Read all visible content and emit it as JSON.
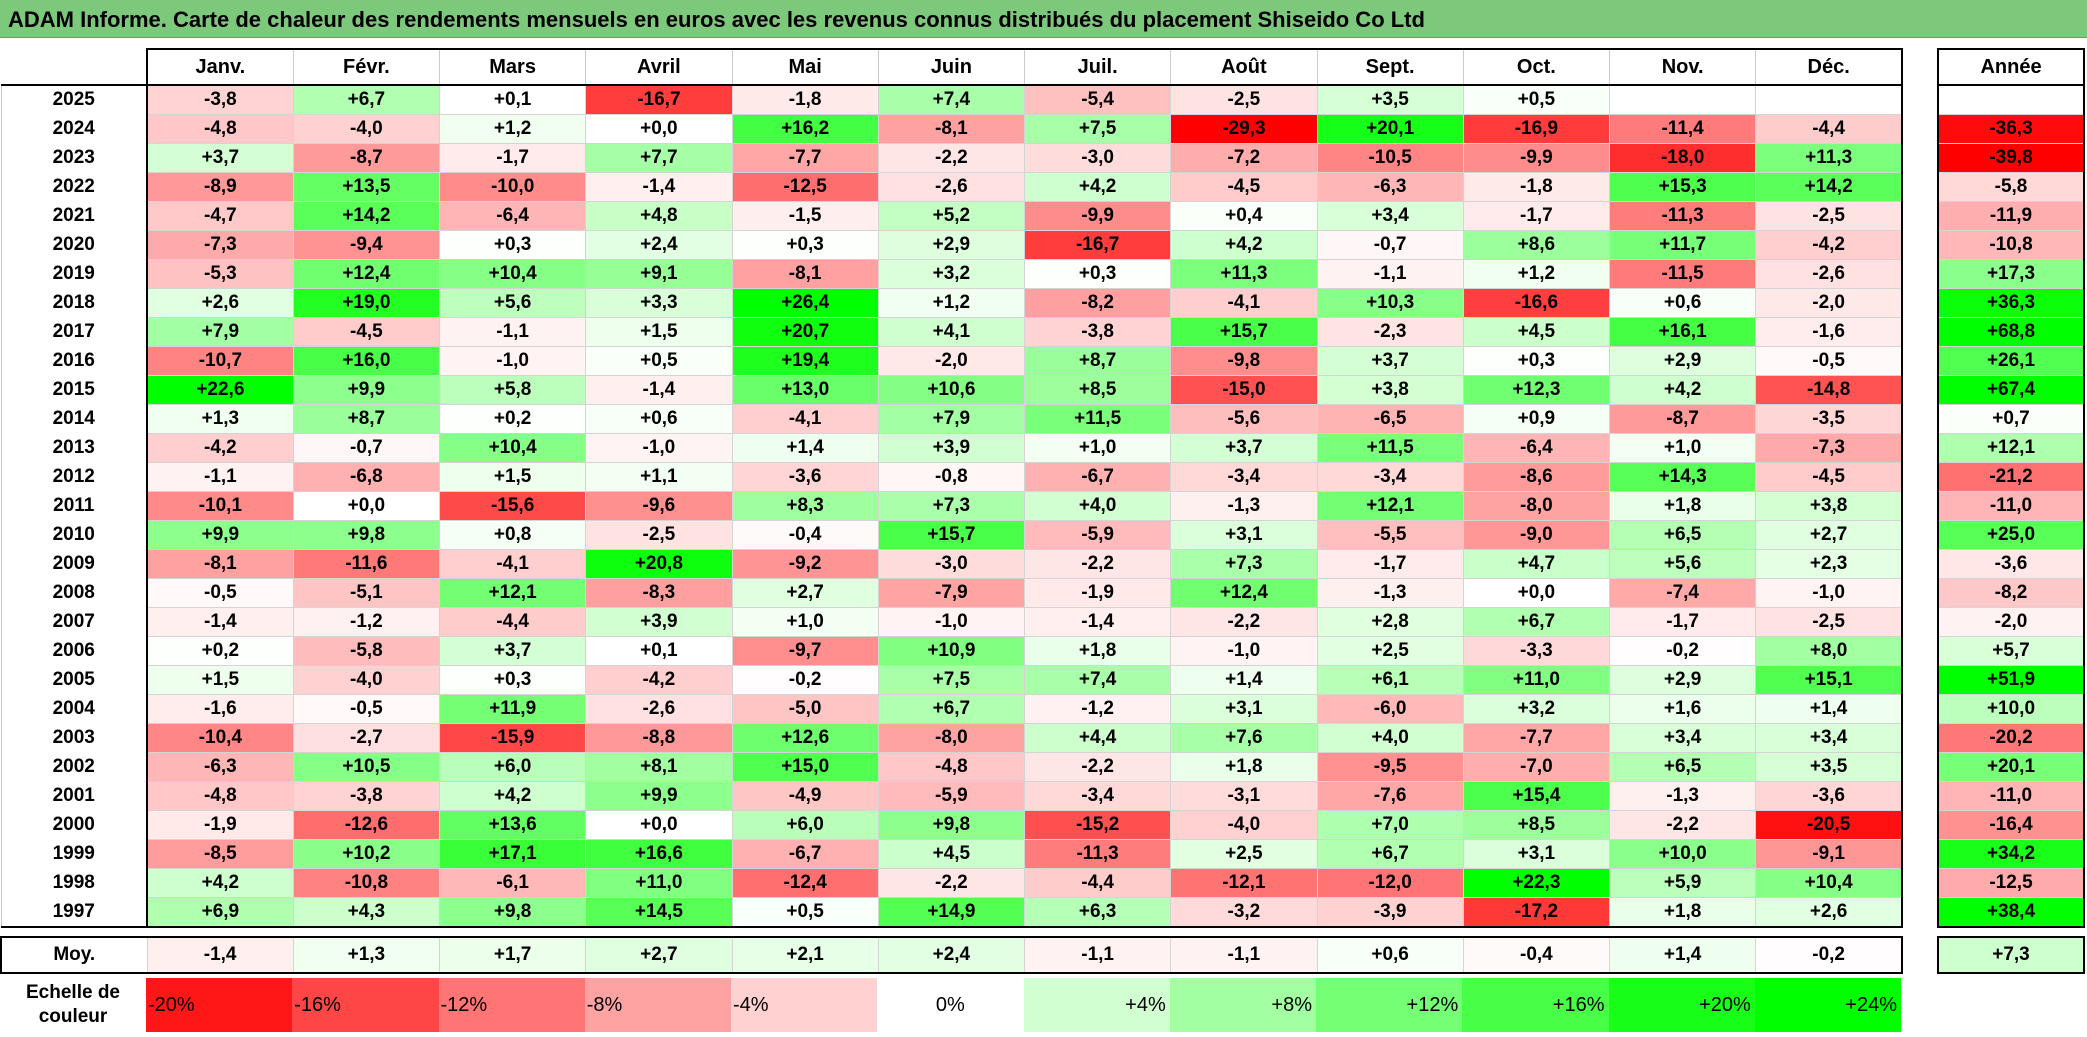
{
  "title": "ADAM Informe. Carte de chaleur des rendements mensuels en euros avec les revenus connus distribués du placement Shiseido Co Ltd",
  "chart_data": {
    "type": "heatmap",
    "title": "ADAM Informe. Carte de chaleur des rendements mensuels en euros avec les revenus connus distribués du placement Shiseido Co Ltd",
    "columns": [
      "Janv.",
      "Févr.",
      "Mars",
      "Avril",
      "Mai",
      "Juin",
      "Juil.",
      "Août",
      "Sept.",
      "Oct.",
      "Nov.",
      "Déc."
    ],
    "annual_header": "Année",
    "rows": [
      {
        "year": "2025",
        "values": [
          "-3,8",
          "+6,7",
          "+0,1",
          "-16,7",
          "-1,8",
          "+7,4",
          "-5,4",
          "-2,5",
          "+3,5",
          "+0,5",
          "",
          ""
        ],
        "annual": ""
      },
      {
        "year": "2024",
        "values": [
          "-4,8",
          "-4,0",
          "+1,2",
          "+0,0",
          "+16,2",
          "-8,1",
          "+7,5",
          "-29,3",
          "+20,1",
          "-16,9",
          "-11,4",
          "-4,4"
        ],
        "annual": "-36,3"
      },
      {
        "year": "2023",
        "values": [
          "+3,7",
          "-8,7",
          "-1,7",
          "+7,7",
          "-7,7",
          "-2,2",
          "-3,0",
          "-7,2",
          "-10,5",
          "-9,9",
          "-18,0",
          "+11,3"
        ],
        "annual": "-39,8"
      },
      {
        "year": "2022",
        "values": [
          "-8,9",
          "+13,5",
          "-10,0",
          "-1,4",
          "-12,5",
          "-2,6",
          "+4,2",
          "-4,5",
          "-6,3",
          "-1,8",
          "+15,3",
          "+14,2"
        ],
        "annual": "-5,8"
      },
      {
        "year": "2021",
        "values": [
          "-4,7",
          "+14,2",
          "-6,4",
          "+4,8",
          "-1,5",
          "+5,2",
          "-9,9",
          "+0,4",
          "+3,4",
          "-1,7",
          "-11,3",
          "-2,5"
        ],
        "annual": "-11,9"
      },
      {
        "year": "2020",
        "values": [
          "-7,3",
          "-9,4",
          "+0,3",
          "+2,4",
          "+0,3",
          "+2,9",
          "-16,7",
          "+4,2",
          "-0,7",
          "+8,6",
          "+11,7",
          "-4,2"
        ],
        "annual": "-10,8"
      },
      {
        "year": "2019",
        "values": [
          "-5,3",
          "+12,4",
          "+10,4",
          "+9,1",
          "-8,1",
          "+3,2",
          "+0,3",
          "+11,3",
          "-1,1",
          "+1,2",
          "-11,5",
          "-2,6"
        ],
        "annual": "+17,3"
      },
      {
        "year": "2018",
        "values": [
          "+2,6",
          "+19,0",
          "+5,6",
          "+3,3",
          "+26,4",
          "+1,2",
          "-8,2",
          "-4,1",
          "+10,3",
          "-16,6",
          "+0,6",
          "-2,0"
        ],
        "annual": "+36,3"
      },
      {
        "year": "2017",
        "values": [
          "+7,9",
          "-4,5",
          "-1,1",
          "+1,5",
          "+20,7",
          "+4,1",
          "-3,8",
          "+15,7",
          "-2,3",
          "+4,5",
          "+16,1",
          "-1,6"
        ],
        "annual": "+68,8"
      },
      {
        "year": "2016",
        "values": [
          "-10,7",
          "+16,0",
          "-1,0",
          "+0,5",
          "+19,4",
          "-2,0",
          "+8,7",
          "-9,8",
          "+3,7",
          "+0,3",
          "+2,9",
          "-0,5"
        ],
        "annual": "+26,1"
      },
      {
        "year": "2015",
        "values": [
          "+22,6",
          "+9,9",
          "+5,8",
          "-1,4",
          "+13,0",
          "+10,6",
          "+8,5",
          "-15,0",
          "+3,8",
          "+12,3",
          "+4,2",
          "-14,8"
        ],
        "annual": "+67,4"
      },
      {
        "year": "2014",
        "values": [
          "+1,3",
          "+8,7",
          "+0,2",
          "+0,6",
          "-4,1",
          "+7,9",
          "+11,5",
          "-5,6",
          "-6,5",
          "+0,9",
          "-8,7",
          "-3,5"
        ],
        "annual": "+0,7"
      },
      {
        "year": "2013",
        "values": [
          "-4,2",
          "-0,7",
          "+10,4",
          "-1,0",
          "+1,4",
          "+3,9",
          "+1,0",
          "+3,7",
          "+11,5",
          "-6,4",
          "+1,0",
          "-7,3"
        ],
        "annual": "+12,1"
      },
      {
        "year": "2012",
        "values": [
          "-1,1",
          "-6,8",
          "+1,5",
          "+1,1",
          "-3,6",
          "-0,8",
          "-6,7",
          "-3,4",
          "-3,4",
          "-8,6",
          "+14,3",
          "-4,5"
        ],
        "annual": "-21,2"
      },
      {
        "year": "2011",
        "values": [
          "-10,1",
          "+0,0",
          "-15,6",
          "-9,6",
          "+8,3",
          "+7,3",
          "+4,0",
          "-1,3",
          "+12,1",
          "-8,0",
          "+1,8",
          "+3,8"
        ],
        "annual": "-11,0"
      },
      {
        "year": "2010",
        "values": [
          "+9,9",
          "+9,8",
          "+0,8",
          "-2,5",
          "-0,4",
          "+15,7",
          "-5,9",
          "+3,1",
          "-5,5",
          "-9,0",
          "+6,5",
          "+2,7"
        ],
        "annual": "+25,0"
      },
      {
        "year": "2009",
        "values": [
          "-8,1",
          "-11,6",
          "-4,1",
          "+20,8",
          "-9,2",
          "-3,0",
          "-2,2",
          "+7,3",
          "-1,7",
          "+4,7",
          "+5,6",
          "+2,3"
        ],
        "annual": "-3,6"
      },
      {
        "year": "2008",
        "values": [
          "-0,5",
          "-5,1",
          "+12,1",
          "-8,3",
          "+2,7",
          "-7,9",
          "-1,9",
          "+12,4",
          "-1,3",
          "+0,0",
          "-7,4",
          "-1,0"
        ],
        "annual": "-8,2"
      },
      {
        "year": "2007",
        "values": [
          "-1,4",
          "-1,2",
          "-4,4",
          "+3,9",
          "+1,0",
          "-1,0",
          "-1,4",
          "-2,2",
          "+2,8",
          "+6,7",
          "-1,7",
          "-2,5"
        ],
        "annual": "-2,0"
      },
      {
        "year": "2006",
        "values": [
          "+0,2",
          "-5,8",
          "+3,7",
          "+0,1",
          "-9,7",
          "+10,9",
          "+1,8",
          "-1,0",
          "+2,5",
          "-3,3",
          "-0,2",
          "+8,0"
        ],
        "annual": "+5,7"
      },
      {
        "year": "2005",
        "values": [
          "+1,5",
          "-4,0",
          "+0,3",
          "-4,2",
          "-0,2",
          "+7,5",
          "+7,4",
          "+1,4",
          "+6,1",
          "+11,0",
          "+2,9",
          "+15,1"
        ],
        "annual": "+51,9"
      },
      {
        "year": "2004",
        "values": [
          "-1,6",
          "-0,5",
          "+11,9",
          "-2,6",
          "-5,0",
          "+6,7",
          "-1,2",
          "+3,1",
          "-6,0",
          "+3,2",
          "+1,6",
          "+1,4"
        ],
        "annual": "+10,0"
      },
      {
        "year": "2003",
        "values": [
          "-10,4",
          "-2,7",
          "-15,9",
          "-8,8",
          "+12,6",
          "-8,0",
          "+4,4",
          "+7,6",
          "+4,0",
          "-7,7",
          "+3,4",
          "+3,4"
        ],
        "annual": "-20,2"
      },
      {
        "year": "2002",
        "values": [
          "-6,3",
          "+10,5",
          "+6,0",
          "+8,1",
          "+15,0",
          "-4,8",
          "-2,2",
          "+1,8",
          "-9,5",
          "-7,0",
          "+6,5",
          "+3,5"
        ],
        "annual": "+20,1"
      },
      {
        "year": "2001",
        "values": [
          "-4,8",
          "-3,8",
          "+4,2",
          "+9,9",
          "-4,9",
          "-5,9",
          "-3,4",
          "-3,1",
          "-7,6",
          "+15,4",
          "-1,3",
          "-3,6"
        ],
        "annual": "-11,0"
      },
      {
        "year": "2000",
        "values": [
          "-1,9",
          "-12,6",
          "+13,6",
          "+0,0",
          "+6,0",
          "+9,8",
          "-15,2",
          "-4,0",
          "+7,0",
          "+8,5",
          "-2,2",
          "-20,5"
        ],
        "annual": "-16,4"
      },
      {
        "year": "1999",
        "values": [
          "-8,5",
          "+10,2",
          "+17,1",
          "+16,6",
          "-6,7",
          "+4,5",
          "-11,3",
          "+2,5",
          "+6,7",
          "+3,1",
          "+10,0",
          "-9,1"
        ],
        "annual": "+34,2"
      },
      {
        "year": "1998",
        "values": [
          "+4,2",
          "-10,8",
          "-6,1",
          "+11,0",
          "-12,4",
          "-2,2",
          "-4,4",
          "-12,1",
          "-12,0",
          "+22,3",
          "+5,9",
          "+10,4"
        ],
        "annual": "-12,5"
      },
      {
        "year": "1997",
        "values": [
          "+6,9",
          "+4,3",
          "+9,8",
          "+14,5",
          "+0,5",
          "+14,9",
          "+6,3",
          "-3,2",
          "-3,9",
          "-17,2",
          "+1,8",
          "+2,6"
        ],
        "annual": "+38,4"
      }
    ],
    "average": {
      "label": "Moy.",
      "values": [
        "-1,4",
        "+1,3",
        "+1,7",
        "+2,7",
        "+2,1",
        "+2,4",
        "-1,1",
        "-1,1",
        "+0,6",
        "-0,4",
        "+1,4",
        "-0,2"
      ],
      "annual": "+7,3"
    },
    "color_scale": {
      "label": "Echelle de couleur",
      "stops": [
        "-20%",
        "-16%",
        "-12%",
        "-8%",
        "-4%",
        "0%",
        "+4%",
        "+8%",
        "+12%",
        "+16%",
        "+20%",
        "+24%"
      ],
      "stop_values": [
        -20,
        -16,
        -12,
        -8,
        -4,
        0,
        4,
        8,
        12,
        16,
        20,
        24
      ],
      "negative_color": "#ff0000",
      "neutral_color": "#ffffff",
      "positive_color": "#00ff00"
    }
  }
}
